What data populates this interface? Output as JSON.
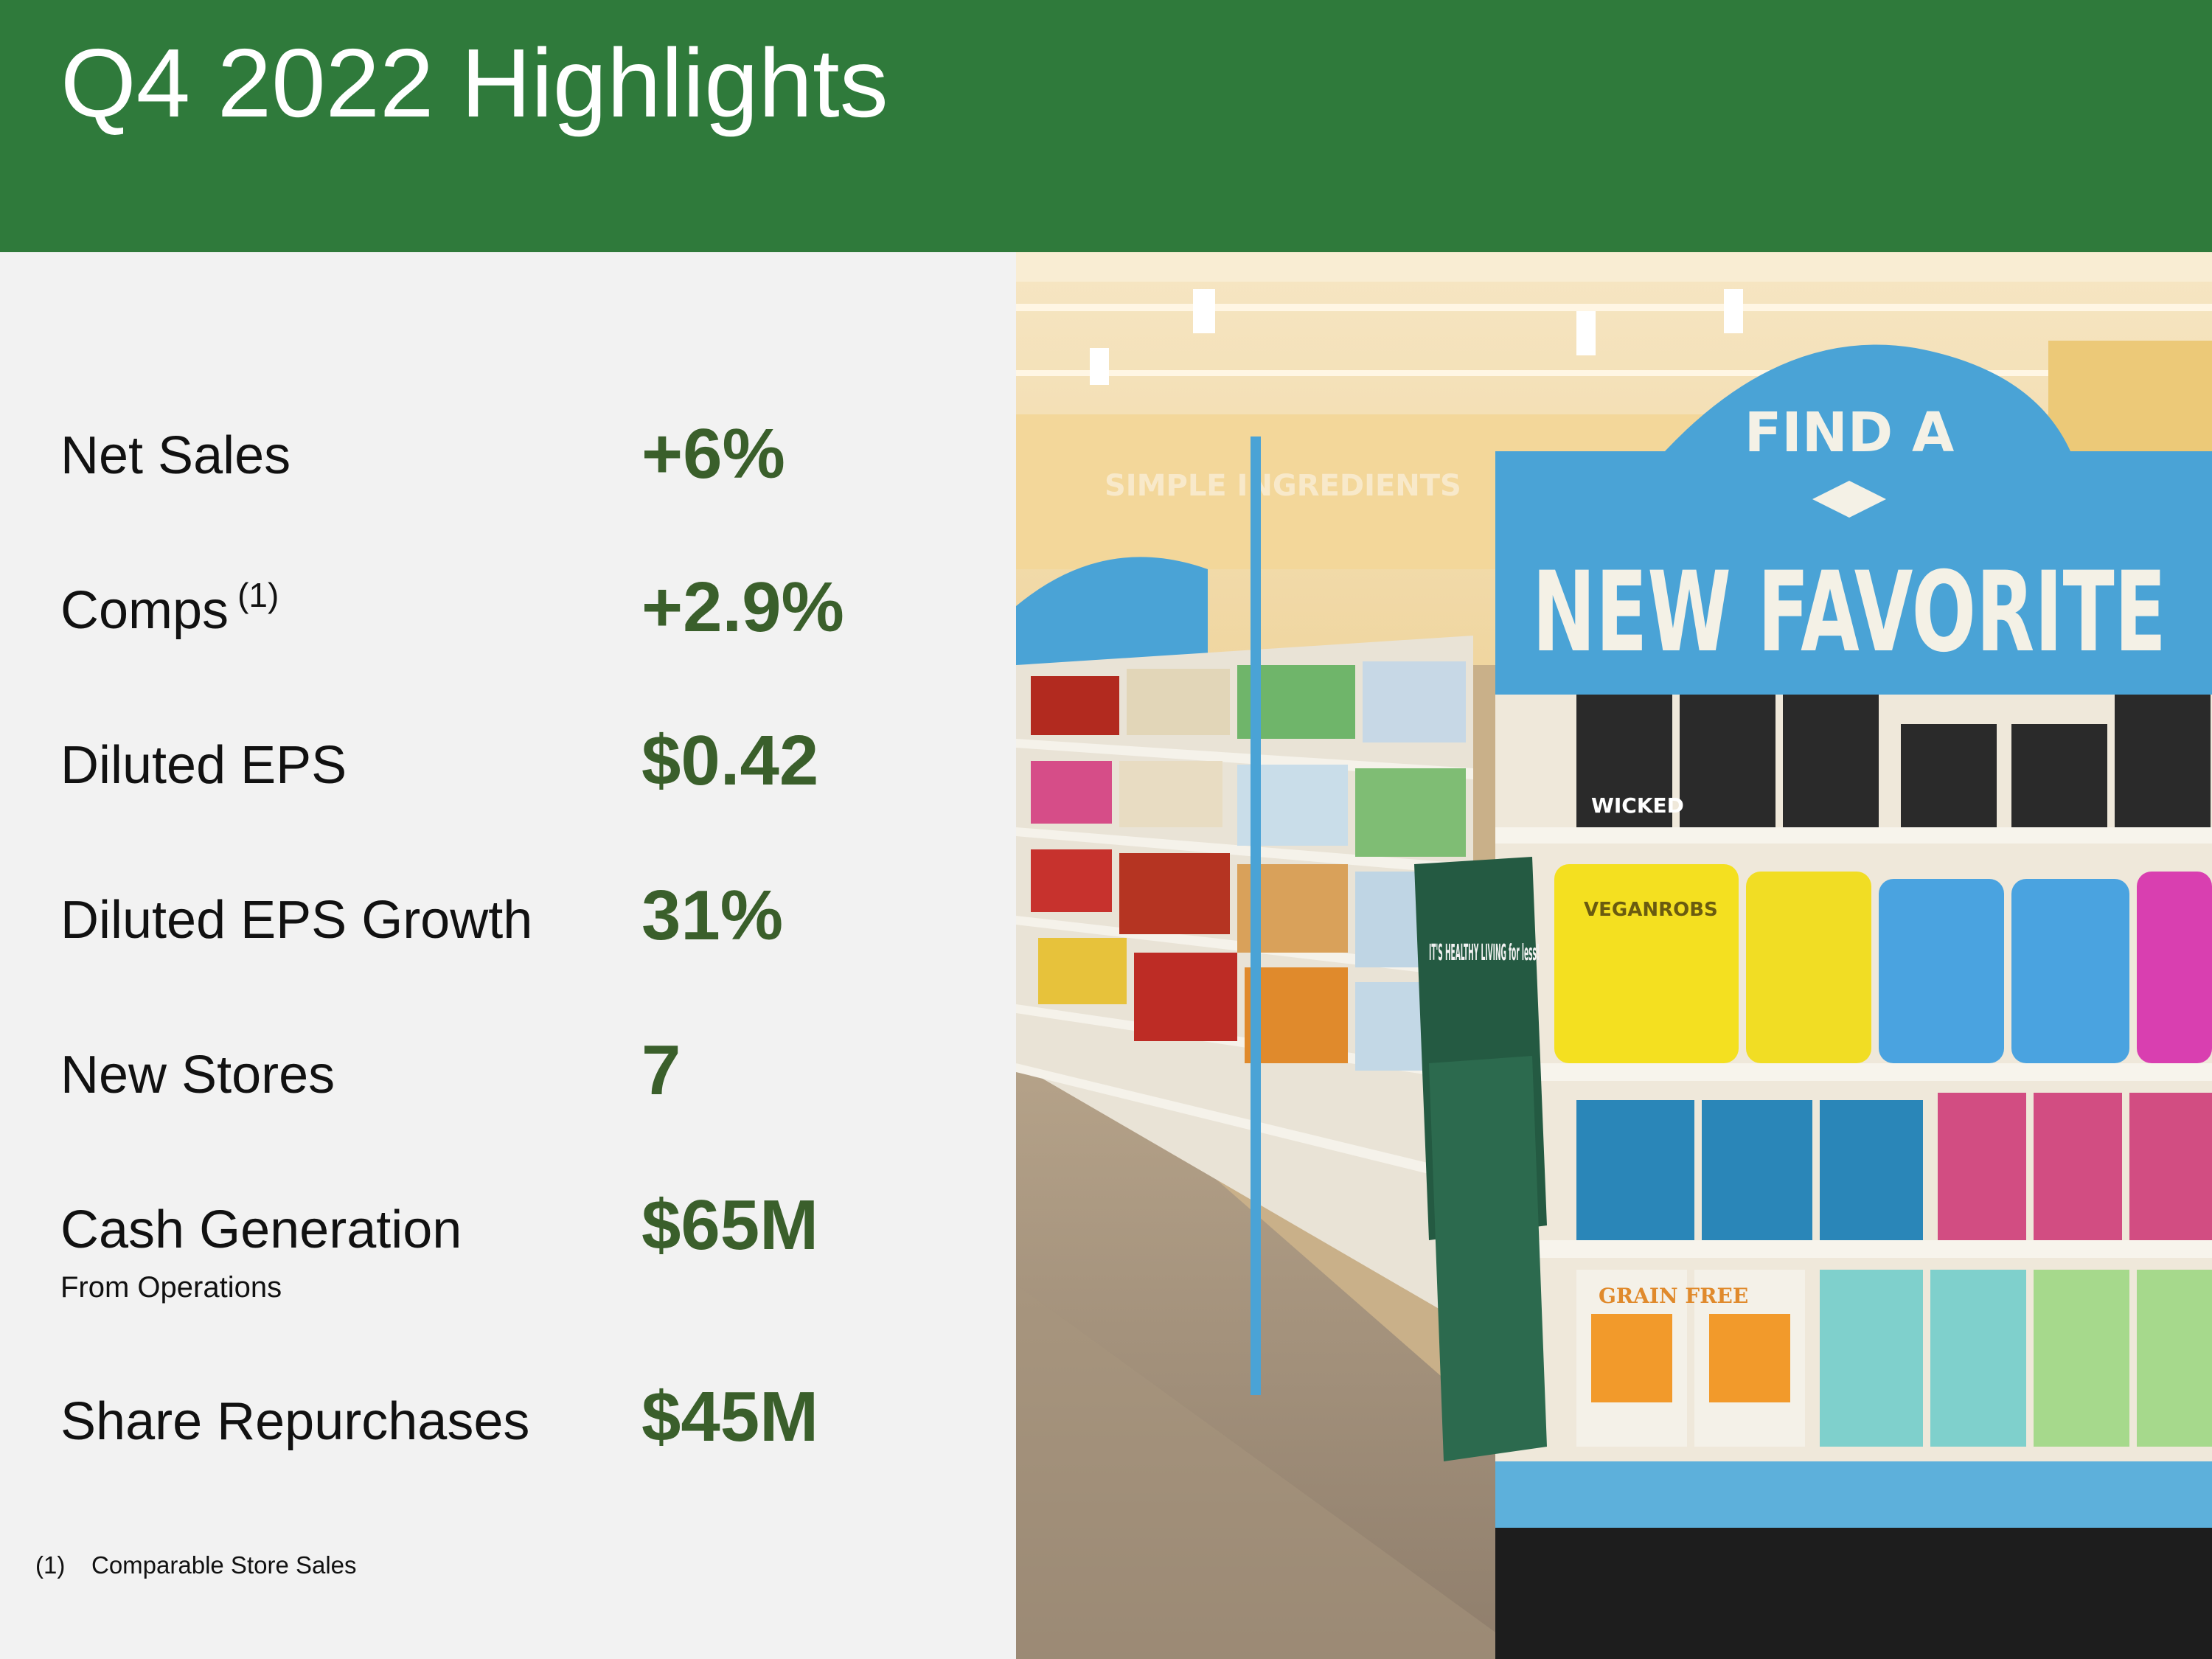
{
  "header": {
    "title": "Q4 2022 Highlights",
    "color": "#2f7a3b"
  },
  "highlights": [
    {
      "label": "Net Sales",
      "value": "+6%"
    },
    {
      "label": "Comps",
      "sup": "(1)",
      "value": "+2.9%"
    },
    {
      "label": "Diluted EPS",
      "value": "$0.42"
    },
    {
      "label": "Diluted EPS Growth",
      "value": "31%"
    },
    {
      "label": "New Stores",
      "value": "7"
    },
    {
      "label": "Cash Generation",
      "sub": "From Operations",
      "value": "$65M"
    },
    {
      "label": "Share Repurchases",
      "value": "$45M"
    }
  ],
  "footnote": {
    "number": "(1)",
    "text": "Comparable Store Sales"
  },
  "photo": {
    "sign_top": "FIND A",
    "sign_main": "NEW FAVORITE",
    "wall_sign": "SIMPLE INGREDIENTS",
    "bag_text": "IT'S HEALTHY LIVING for less!",
    "product_brand": "WICKED",
    "product_bag": "VEGANROBS",
    "product_cracker": "GRAIN FREE",
    "accent": "#4aa3d6",
    "value_color": "#3a5f2b"
  }
}
